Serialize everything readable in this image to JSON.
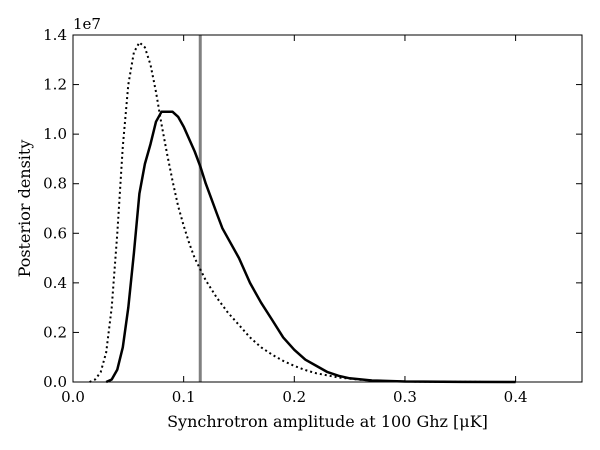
{
  "chart_data": {
    "type": "line",
    "title": "",
    "xlabel": "Synchrotron amplitude at 100 Ghz [μK]",
    "ylabel": "Posterior density",
    "y_offset_label": "1e7",
    "xlim": [
      0.0,
      0.46
    ],
    "ylim": [
      0.0,
      1.4
    ],
    "x_ticks": [
      0.0,
      0.1,
      0.2,
      0.3,
      0.4
    ],
    "x_tick_labels": [
      "0.0",
      "0.1",
      "0.2",
      "0.3",
      "0.4"
    ],
    "y_ticks": [
      0.0,
      0.2,
      0.4,
      0.6,
      0.8,
      1.0,
      1.2,
      1.4
    ],
    "y_tick_labels": [
      "0.0",
      "0.2",
      "0.4",
      "0.6",
      "0.8",
      "1.0",
      "1.2",
      "1.4"
    ],
    "grid": false,
    "legend": "none",
    "vertical_line": {
      "x": 0.115,
      "color": "#808080"
    },
    "series": [
      {
        "style": "solid",
        "color": "#000000",
        "x": [
          0.03,
          0.035,
          0.04,
          0.045,
          0.05,
          0.055,
          0.06,
          0.065,
          0.07,
          0.075,
          0.08,
          0.085,
          0.09,
          0.095,
          0.1,
          0.105,
          0.11,
          0.115,
          0.12,
          0.125,
          0.13,
          0.135,
          0.14,
          0.15,
          0.16,
          0.17,
          0.18,
          0.19,
          0.2,
          0.21,
          0.22,
          0.23,
          0.24,
          0.25,
          0.27,
          0.3,
          0.35,
          0.4
        ],
        "y": [
          0.0,
          0.01,
          0.05,
          0.14,
          0.3,
          0.52,
          0.76,
          0.88,
          0.96,
          1.05,
          1.09,
          1.09,
          1.09,
          1.07,
          1.03,
          0.98,
          0.93,
          0.87,
          0.8,
          0.74,
          0.68,
          0.62,
          0.58,
          0.5,
          0.4,
          0.32,
          0.25,
          0.18,
          0.13,
          0.09,
          0.065,
          0.04,
          0.025,
          0.015,
          0.006,
          0.002,
          0.0005,
          0.0
        ]
      },
      {
        "style": "dotted",
        "color": "#000000",
        "x": [
          0.015,
          0.02,
          0.025,
          0.03,
          0.035,
          0.04,
          0.045,
          0.05,
          0.055,
          0.06,
          0.065,
          0.07,
          0.075,
          0.08,
          0.085,
          0.09,
          0.095,
          0.1,
          0.105,
          0.11,
          0.12,
          0.13,
          0.14,
          0.15,
          0.16,
          0.17,
          0.18,
          0.19,
          0.2,
          0.21,
          0.22,
          0.24,
          0.26,
          0.28,
          0.3,
          0.35,
          0.4
        ],
        "y": [
          0.0,
          0.01,
          0.04,
          0.12,
          0.3,
          0.6,
          0.95,
          1.2,
          1.33,
          1.37,
          1.35,
          1.28,
          1.17,
          1.04,
          0.92,
          0.81,
          0.71,
          0.63,
          0.56,
          0.5,
          0.41,
          0.34,
          0.28,
          0.23,
          0.18,
          0.14,
          0.11,
          0.085,
          0.065,
          0.048,
          0.035,
          0.018,
          0.009,
          0.004,
          0.002,
          0.0005,
          0.0
        ]
      }
    ]
  }
}
